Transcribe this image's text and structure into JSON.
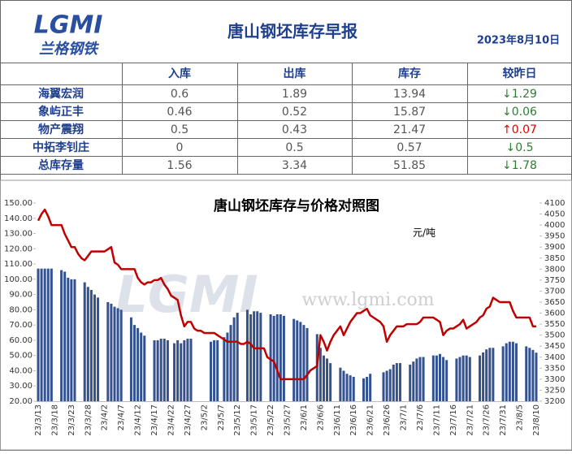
{
  "header": {
    "logo": "LGMI",
    "brand": "兰格钢铁",
    "title": "唐山钢坯库存早报",
    "date": "2023年8月10日"
  },
  "table": {
    "header": [
      "入库",
      "出库",
      "库存",
      "较昨日"
    ],
    "rows": [
      [
        "海翼宏润",
        "0.6",
        "1.89",
        "13.94",
        "↓1.29"
      ],
      [
        "象屿正丰",
        "0.46",
        "0.52",
        "15.87",
        "↓0.06"
      ],
      [
        "物产震翔",
        "0.5",
        "0.43",
        "21.47",
        "↑0.07"
      ],
      [
        "中拓李钊庄",
        "0",
        "0.5",
        "0.57",
        "↓0.5"
      ],
      [
        "总库存量",
        "1.56",
        "3.34",
        "51.85",
        "↓1.78"
      ]
    ]
  },
  "chart_data": {
    "type": "combo",
    "title": "唐山钢坯库存与价格对照图",
    "unit": "元/吨",
    "watermark": "www.lgmi.com",
    "watermark_logo": "LGMI",
    "categories": [
      "23/3/13",
      null,
      null,
      null,
      null,
      "23/3/18",
      null,
      null,
      null,
      null,
      "23/3/23",
      null,
      null,
      null,
      null,
      "23/3/28",
      null,
      null,
      null,
      null,
      "23/4/2",
      null,
      null,
      null,
      null,
      "23/4/7",
      null,
      null,
      null,
      null,
      "23/4/12",
      null,
      null,
      null,
      null,
      "23/4/17",
      null,
      null,
      null,
      null,
      "23/4/22",
      null,
      null,
      null,
      null,
      "23/4/27",
      null,
      null,
      null,
      null,
      "23/5/2",
      null,
      null,
      null,
      null,
      "23/5/7",
      null,
      null,
      null,
      null,
      "23/5/12",
      null,
      null,
      null,
      null,
      "23/5/17",
      null,
      null,
      null,
      null,
      "23/5/22",
      null,
      null,
      null,
      null,
      "23/5/27",
      null,
      null,
      null,
      null,
      "23/6/1",
      null,
      null,
      null,
      null,
      "23/6/6",
      null,
      null,
      null,
      null,
      "23/6/11",
      null,
      null,
      null,
      null,
      "23/6/16",
      null,
      null,
      null,
      null,
      "23/6/21",
      null,
      null,
      null,
      null,
      "23/6/26",
      null,
      null,
      null,
      null,
      "23/7/1",
      null,
      null,
      null,
      null,
      "23/7/6",
      null,
      null,
      null,
      null,
      "23/7/11",
      null,
      null,
      null,
      null,
      "23/7/16",
      null,
      null,
      null,
      null,
      "23/7/21",
      null,
      null,
      null,
      null,
      "23/7/26",
      null,
      null,
      null,
      null,
      "23/7/31",
      null,
      null,
      null,
      null,
      "23/8/5",
      null,
      null,
      null,
      null,
      "23/8/10"
    ],
    "series": [
      {
        "type": "bar",
        "color": "#34528f",
        "values": [
          107,
          107,
          107,
          107,
          107,
          null,
          null,
          106,
          105,
          101,
          100,
          100,
          null,
          null,
          98,
          95,
          93,
          90,
          88,
          null,
          null,
          85,
          84,
          82,
          81,
          80,
          null,
          null,
          75,
          70,
          68,
          65,
          63,
          null,
          null,
          60,
          60,
          61,
          61,
          60,
          null,
          58,
          60,
          58,
          60,
          61,
          61,
          null,
          null,
          null,
          null,
          null,
          59,
          60,
          60,
          null,
          62,
          65,
          70,
          75,
          78,
          null,
          null,
          80,
          77,
          79,
          79,
          78,
          null,
          null,
          77,
          76,
          77,
          77,
          76,
          null,
          null,
          74,
          73,
          72,
          70,
          68,
          null,
          null,
          64,
          55,
          50,
          48,
          45,
          null,
          null,
          42,
          40,
          38,
          37,
          36,
          null,
          null,
          35,
          36,
          38,
          null,
          null,
          null,
          39,
          40,
          41,
          44,
          45,
          45,
          null,
          null,
          44,
          46,
          48,
          49,
          49,
          null,
          null,
          50,
          50,
          51,
          49,
          47,
          null,
          null,
          48,
          49,
          50,
          50,
          49,
          null,
          null,
          50,
          52,
          54,
          55,
          55,
          null,
          null,
          56,
          58,
          59,
          59,
          58,
          null,
          null,
          56,
          55,
          53.63,
          51.85
        ]
      },
      {
        "type": "line",
        "axis": "y2",
        "color": "#c00000",
        "values": [
          4020,
          4050,
          4070,
          4040,
          4000,
          4000,
          4000,
          4000,
          3960,
          3930,
          3900,
          3900,
          3870,
          3850,
          3840,
          3860,
          3880,
          3880,
          3880,
          3880,
          3880,
          3890,
          3900,
          3830,
          3820,
          3800,
          3800,
          3800,
          3800,
          3800,
          3760,
          3740,
          3730,
          3740,
          3740,
          3750,
          3750,
          3760,
          3730,
          3710,
          3680,
          3670,
          3660,
          3590,
          3540,
          3560,
          3560,
          3530,
          3520,
          3520,
          3510,
          3510,
          3510,
          3510,
          3500,
          3490,
          3480,
          3470,
          3470,
          3470,
          3470,
          3460,
          3460,
          3470,
          3460,
          3440,
          3440,
          3440,
          3440,
          3400,
          3390,
          3380,
          3340,
          3300,
          3300,
          3300,
          3300,
          3300,
          3300,
          3300,
          3300,
          3320,
          3340,
          3350,
          3360,
          3500,
          3470,
          3430,
          3470,
          3500,
          3520,
          3540,
          3500,
          3530,
          3560,
          3580,
          3600,
          3600,
          3610,
          3620,
          3590,
          3580,
          3570,
          3560,
          3540,
          3470,
          3500,
          3520,
          3540,
          3540,
          3540,
          3550,
          3550,
          3550,
          3550,
          3560,
          3580,
          3580,
          3580,
          3580,
          3570,
          3560,
          3500,
          3520,
          3530,
          3530,
          3540,
          3550,
          3570,
          3530,
          3540,
          3550,
          3560,
          3580,
          3590,
          3620,
          3630,
          3670,
          3660,
          3650,
          3650,
          3650,
          3650,
          3610,
          3580,
          3580,
          3580,
          3580,
          3580,
          3540,
          3540
        ]
      }
    ],
    "ylim": [
      20,
      150
    ],
    "yticks": [
      {
        "value": 20,
        "label": "20.00"
      },
      {
        "value": 30,
        "label": "30.00"
      },
      {
        "value": 40,
        "label": "40.00"
      },
      {
        "value": 50,
        "label": "50.00"
      },
      {
        "value": 60,
        "label": "60.00"
      },
      {
        "value": 70,
        "label": "70.00"
      },
      {
        "value": 80,
        "label": "80.00"
      },
      {
        "value": 90,
        "label": "90.00"
      },
      {
        "value": 100,
        "label": "100.00"
      },
      {
        "value": 110,
        "label": "110.00"
      },
      {
        "value": 120,
        "label": "120.00"
      },
      {
        "value": 130,
        "label": "130.00"
      },
      {
        "value": 140,
        "label": "140.00"
      },
      {
        "value": 150,
        "label": "150.00"
      }
    ],
    "y2lim": [
      3200,
      4100
    ],
    "y2ticks": [
      3200,
      3250,
      3300,
      3350,
      3400,
      3450,
      3500,
      3550,
      3600,
      3650,
      3700,
      3750,
      3800,
      3850,
      3900,
      3950,
      4000,
      4050,
      4100
    ],
    "grid": false
  }
}
